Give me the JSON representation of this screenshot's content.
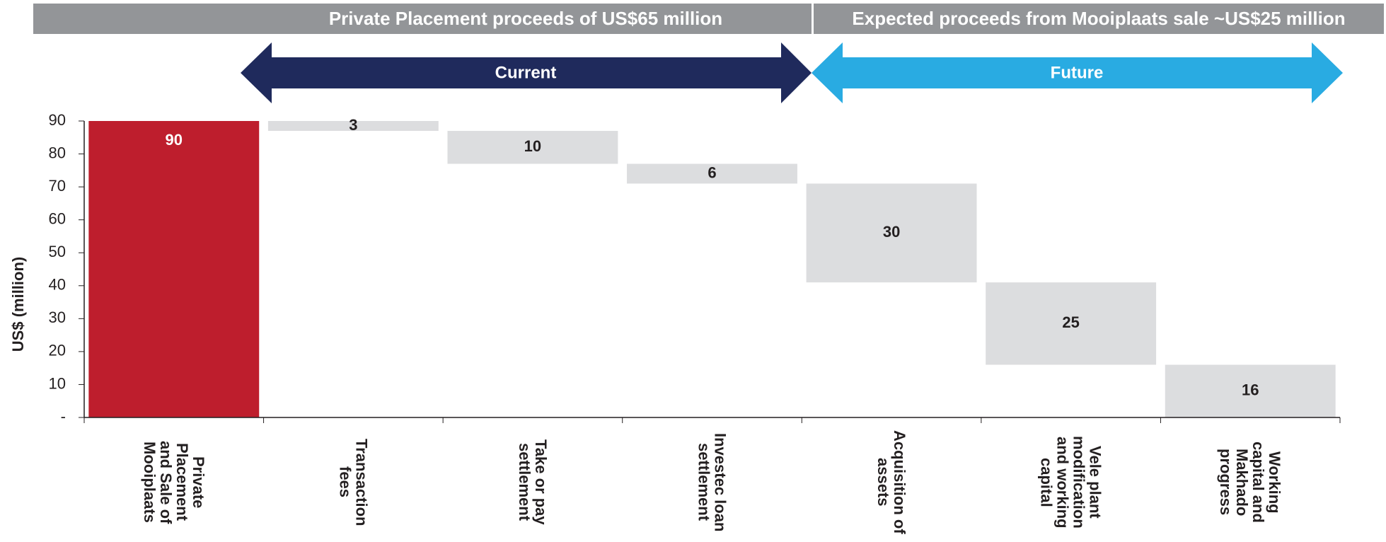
{
  "chart_data": {
    "type": "waterfall",
    "banners": [
      "Private Placement proceeds of US$65 million",
      "Expected proceeds from Mooiplaats sale ~US$25 million"
    ],
    "phases": [
      "Current",
      "Future"
    ],
    "y_label": "US$ (million)",
    "categories": [
      "Private\nPlacement\nand Sale of\nMooiplaats",
      "Transaction\nfees",
      "Take or pay\nsettlement",
      "Investec loan\nsettlement",
      "Acquisition of\nassets",
      "Vele plant\nmodification\nand working\ncapital",
      "Working\ncapital and\nMakhado\nprogress"
    ],
    "values": [
      90,
      3,
      10,
      6,
      30,
      25,
      16
    ],
    "bar_colors": [
      "#be1e2d",
      "#dcdddf",
      "#dcdddf",
      "#dcdddf",
      "#dcdddf",
      "#dcdddf",
      "#dcdddf"
    ],
    "ylim": [
      0,
      90
    ],
    "yticks": [
      {
        "value": 0,
        "label": "-"
      },
      10,
      20,
      30,
      40,
      50,
      60,
      70,
      80,
      90
    ]
  }
}
